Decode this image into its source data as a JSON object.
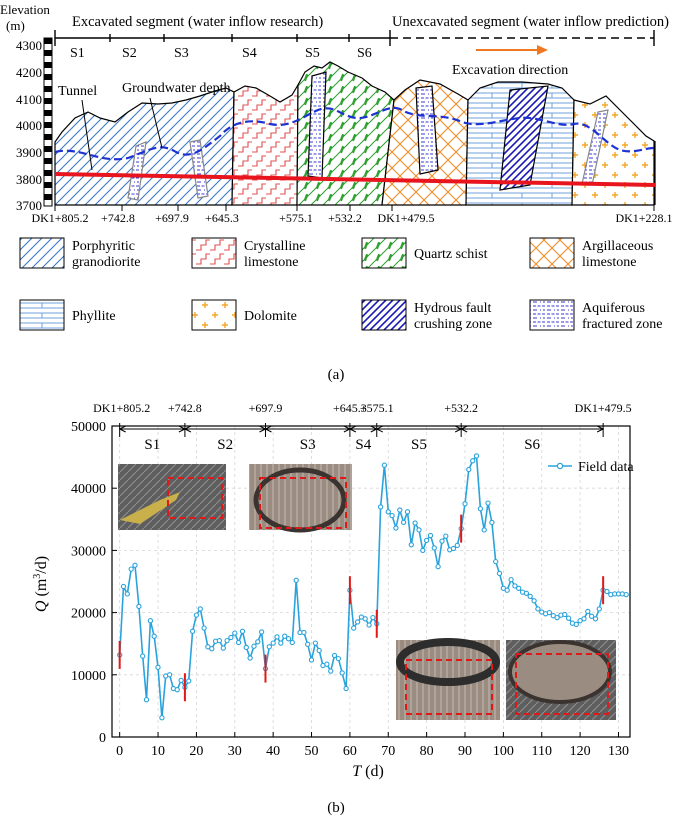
{
  "panel_a": {
    "caption": "(a)",
    "elevation_label": "Elevation",
    "elevation_unit": "(m)",
    "y_ticks": [
      "4300",
      "4200",
      "4100",
      "4000",
      "3900",
      "3800",
      "3700"
    ],
    "excavated_label": "Excavated segment (water inflow research)",
    "unexcavated_label": "Unexcavated segment (water inflow prediction)",
    "excavation_direction": "Excavation direction",
    "tunnel_label": "Tunnel",
    "groundwater_label": "Groundwater depth",
    "segments": [
      "S1",
      "S2",
      "S3",
      "S4",
      "S5",
      "S6"
    ],
    "stations": [
      "DK1+805.2",
      "+742.8",
      "+697.9",
      "+645.3",
      "+575.1",
      "+532.2",
      "DK1+479.5",
      "DK1+228.1"
    ],
    "legend": [
      {
        "key": "porphyritic",
        "label": [
          "Porphyritic",
          "granodiorite"
        ]
      },
      {
        "key": "crystalline",
        "label": [
          "Crystalline",
          "limestone"
        ]
      },
      {
        "key": "quartz",
        "label": [
          "Quartz schist"
        ]
      },
      {
        "key": "argillaceous",
        "label": [
          "Argillaceous",
          "limestone"
        ]
      },
      {
        "key": "phyllite",
        "label": [
          "Phyllite"
        ]
      },
      {
        "key": "dolomite",
        "label": [
          "Dolomite"
        ]
      },
      {
        "key": "fault",
        "label": [
          "Hydrous fault",
          "crushing zone"
        ]
      },
      {
        "key": "aquifer",
        "label": [
          "Aquiferous",
          "fractured zone"
        ]
      }
    ],
    "colors": {
      "porphyritic": "#3c78c8",
      "crystalline": "#e05050",
      "quartz": "#2ea02e",
      "argillaceous": "#f08c28",
      "phyllite": "#6ea0dc",
      "dolomite": "#f5a623",
      "fault": "#1a1ab4",
      "aquifer": "#3a3ad0",
      "tunnel": "#e8141e",
      "groundwater": "#1e32d2",
      "arrow": "#f07820"
    }
  },
  "panel_b": {
    "caption": "(b)",
    "photo_count": 4
  },
  "chart_data": {
    "type": "line",
    "title": "",
    "xlabel": "T (d)",
    "ylabel": "Q (m³/d)",
    "xlim": [
      -2,
      133
    ],
    "ylim": [
      0,
      50000
    ],
    "x_ticks": [
      0,
      10,
      20,
      30,
      40,
      50,
      60,
      70,
      80,
      90,
      100,
      110,
      120,
      130
    ],
    "y_ticks": [
      0,
      10000,
      20000,
      30000,
      40000,
      50000
    ],
    "grid": true,
    "legend_position": "top-right",
    "color": "#2aa3dc",
    "segment_stations": [
      {
        "x": 0,
        "label": "DK1+805.2"
      },
      {
        "x": 17,
        "label": "+742.8"
      },
      {
        "x": 38,
        "label": "+697.9"
      },
      {
        "x": 60,
        "label": "+645.3"
      },
      {
        "x": 67,
        "label": "+575.1"
      },
      {
        "x": 89,
        "label": "+532.2"
      },
      {
        "x": 126,
        "label": "DK1+479.5"
      }
    ],
    "segments": [
      {
        "name": "S1",
        "from": 0,
        "to": 17
      },
      {
        "name": "S2",
        "from": 17,
        "to": 38
      },
      {
        "name": "S3",
        "from": 38,
        "to": 60
      },
      {
        "name": "S4",
        "from": 60,
        "to": 67
      },
      {
        "name": "S5",
        "from": 67,
        "to": 89
      },
      {
        "name": "S6",
        "from": 89,
        "to": 126
      }
    ],
    "boundary_days": [
      0,
      17,
      38,
      60,
      67,
      89,
      126
    ],
    "series": [
      {
        "name": "Field data",
        "x": [
          0,
          1,
          2,
          3,
          4,
          5,
          6,
          7,
          8,
          9,
          10,
          11,
          12,
          13,
          14,
          15,
          16,
          17,
          18,
          19,
          20,
          21,
          22,
          23,
          24,
          25,
          26,
          27,
          28,
          29,
          30,
          31,
          32,
          33,
          34,
          35,
          36,
          37,
          38,
          39,
          40,
          41,
          42,
          43,
          44,
          45,
          46,
          47,
          48,
          49,
          50,
          51,
          52,
          53,
          54,
          55,
          56,
          57,
          58,
          59,
          60,
          61,
          62,
          63,
          64,
          65,
          66,
          67,
          68,
          69,
          70,
          71,
          72,
          73,
          74,
          75,
          76,
          77,
          78,
          79,
          80,
          81,
          82,
          83,
          84,
          85,
          86,
          87,
          88,
          89,
          90,
          91,
          92,
          93,
          94,
          95,
          96,
          97,
          98,
          99,
          100,
          101,
          102,
          103,
          104,
          105,
          106,
          107,
          108,
          109,
          110,
          111,
          112,
          113,
          114,
          115,
          116,
          117,
          118,
          119,
          120,
          121,
          122,
          123,
          124,
          125,
          126,
          127,
          128,
          129,
          130,
          131,
          132
        ],
        "y": [
          13200,
          24200,
          23000,
          27000,
          27600,
          21000,
          13000,
          6000,
          18700,
          16200,
          11200,
          3100,
          9800,
          10000,
          7800,
          7600,
          9100,
          8000,
          9000,
          17000,
          19600,
          20600,
          17500,
          14500,
          14200,
          15400,
          15500,
          14300,
          15500,
          16000,
          16700,
          15200,
          17000,
          14400,
          12700,
          14600,
          15300,
          16900,
          11000,
          14500,
          15100,
          16100,
          15100,
          16200,
          15800,
          15200,
          25200,
          16800,
          16800,
          14900,
          12400,
          15100,
          13900,
          11500,
          11700,
          10600,
          13100,
          12600,
          10300,
          7800,
          23600,
          17500,
          18500,
          19300,
          19000,
          18000,
          19200,
          18200,
          37000,
          43700,
          36200,
          35600,
          33600,
          36500,
          34500,
          36200,
          30900,
          34400,
          33300,
          30000,
          31600,
          32400,
          30400,
          27400,
          31500,
          32300,
          30100,
          30300,
          30800,
          33500,
          37500,
          43000,
          44400,
          45200,
          36700,
          33300,
          37600,
          34500,
          28200,
          26300,
          23900,
          23600,
          25300,
          24300,
          23900,
          23300,
          23100,
          22600,
          21900,
          20600,
          20100,
          19800,
          20000,
          19500,
          19200,
          19600,
          19700,
          19100,
          18300,
          18100,
          18700,
          19000,
          20200,
          19400,
          19000,
          20600,
          23600,
          23400,
          22900,
          23000,
          23000,
          23000,
          22900
        ]
      }
    ]
  }
}
